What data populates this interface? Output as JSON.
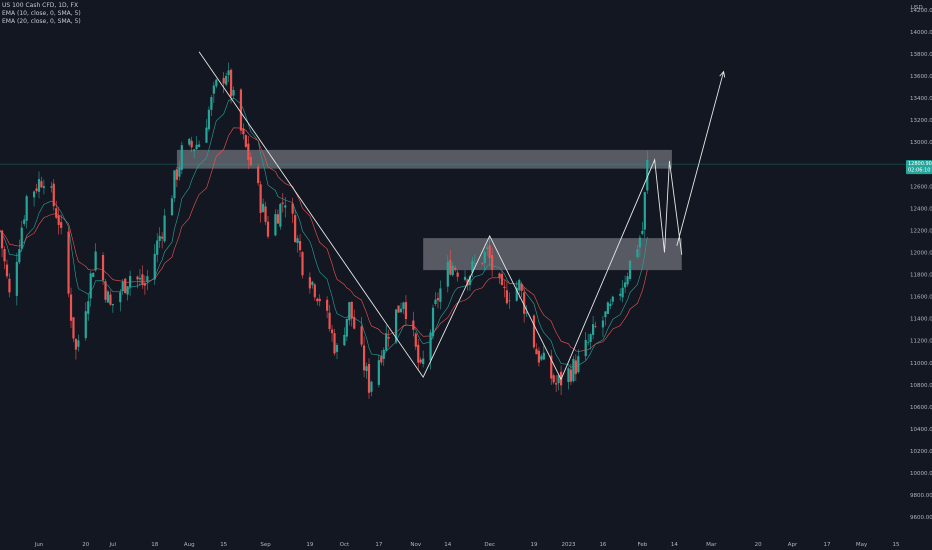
{
  "legend": {
    "symbol": "US 100 Cash CFD, 1D, FX",
    "ema1": "EMA (10, close, 0, SMA, 5)",
    "ema2": "EMA (20, close, 0, SMA, 5)"
  },
  "currency": "USD",
  "price_labels": {
    "last": "12800.90",
    "countdown": "02:06:10"
  },
  "colors": {
    "background": "#131722",
    "bull": "#26a69a",
    "bear": "#ef5350",
    "ema_fast": "#26a69a",
    "ema_slow": "#ef5350",
    "zone": "#6f7279",
    "drawing": "#e6e6e6",
    "axis_text": "#b2b5be",
    "price_line": "#26a69a"
  },
  "chart_data": {
    "type": "candlestick",
    "title": "",
    "y_axis_side": "right",
    "ylim": [
      9450,
      14800
    ],
    "y_ticks": [
      9600,
      9800,
      10000,
      10200,
      10400,
      10600,
      10800,
      11000,
      11200,
      11400,
      11600,
      11800,
      12000,
      12200,
      12400,
      12600,
      12800,
      13000,
      13200,
      13400,
      13600,
      13800,
      14000,
      14200
    ],
    "x_ticks": [
      {
        "label": "Jun",
        "date": "2022-06-01"
      },
      {
        "label": "20",
        "date": "2022-06-20"
      },
      {
        "label": "Jul",
        "date": "2022-07-01"
      },
      {
        "label": "18",
        "date": "2022-07-18"
      },
      {
        "label": "Aug",
        "date": "2022-08-01"
      },
      {
        "label": "15",
        "date": "2022-08-15"
      },
      {
        "label": "Sep",
        "date": "2022-09-01"
      },
      {
        "label": "19",
        "date": "2022-09-19"
      },
      {
        "label": "Oct",
        "date": "2022-10-03"
      },
      {
        "label": "17",
        "date": "2022-10-17"
      },
      {
        "label": "Nov",
        "date": "2022-11-01"
      },
      {
        "label": "14",
        "date": "2022-11-14"
      },
      {
        "label": "Dec",
        "date": "2022-12-01"
      },
      {
        "label": "19",
        "date": "2022-12-19"
      },
      {
        "label": "2023",
        "date": "2023-01-02"
      },
      {
        "label": "16",
        "date": "2023-01-16"
      },
      {
        "label": "Feb",
        "date": "2023-02-01"
      },
      {
        "label": "14",
        "date": "2023-02-14"
      },
      {
        "label": "Mar",
        "date": "2023-03-01"
      },
      {
        "label": "20",
        "date": "2023-03-20"
      },
      {
        "label": "Apr",
        "date": "2023-04-03"
      },
      {
        "label": "17",
        "date": "2023-04-17"
      },
      {
        "label": "May",
        "date": "2023-05-01"
      },
      {
        "label": "15",
        "date": "2023-05-15"
      }
    ],
    "anchors": [
      [
        "2022-05-16",
        12200
      ],
      [
        "2022-05-20",
        11600
      ],
      [
        "2022-05-27",
        12500
      ],
      [
        "2022-06-03",
        12700
      ],
      [
        "2022-06-09",
        12300
      ],
      [
        "2022-06-16",
        11100
      ],
      [
        "2022-06-24",
        12000
      ],
      [
        "2022-06-30",
        11500
      ],
      [
        "2022-07-08",
        11800
      ],
      [
        "2022-07-14",
        11700
      ],
      [
        "2022-07-22",
        12300
      ],
      [
        "2022-07-29",
        12900
      ],
      [
        "2022-08-05",
        13000
      ],
      [
        "2022-08-12",
        13500
      ],
      [
        "2022-08-16",
        13650
      ],
      [
        "2022-08-23",
        13000
      ],
      [
        "2022-08-26",
        12800
      ],
      [
        "2022-09-02",
        12200
      ],
      [
        "2022-09-09",
        12500
      ],
      [
        "2022-09-13",
        12200
      ],
      [
        "2022-09-16",
        11900
      ],
      [
        "2022-09-23",
        11600
      ],
      [
        "2022-09-30",
        11100
      ],
      [
        "2022-10-05",
        11500
      ],
      [
        "2022-10-13",
        10800
      ],
      [
        "2022-10-21",
        11300
      ],
      [
        "2022-10-27",
        11600
      ],
      [
        "2022-11-03",
        10900
      ],
      [
        "2022-11-10",
        11600
      ],
      [
        "2022-11-15",
        11900
      ],
      [
        "2022-11-22",
        11800
      ],
      [
        "2022-11-30",
        12000
      ],
      [
        "2022-12-06",
        11600
      ],
      [
        "2022-12-13",
        11700
      ],
      [
        "2022-12-20",
        11100
      ],
      [
        "2022-12-28",
        10800
      ],
      [
        "2023-01-06",
        11000
      ],
      [
        "2023-01-13",
        11300
      ],
      [
        "2023-01-20",
        11500
      ],
      [
        "2023-01-27",
        11900
      ],
      [
        "2023-02-01",
        12200
      ],
      [
        "2023-02-03",
        12800
      ]
    ],
    "ema_periods": [
      10,
      20
    ],
    "zones": [
      {
        "from": "2022-07-27",
        "to": "2023-02-13",
        "top": 12930,
        "bottom": 12760
      },
      {
        "from": "2022-11-04",
        "to": "2023-02-17",
        "top": 12130,
        "bottom": 11840
      }
    ],
    "drawings": [
      {
        "type": "polyline",
        "points": [
          [
            "2022-08-05",
            13820
          ],
          [
            "2022-11-04",
            10870
          ],
          [
            "2022-12-01",
            12150
          ],
          [
            "2022-12-30",
            10850
          ],
          [
            "2023-02-06",
            12840
          ],
          [
            "2023-02-10",
            12000
          ],
          [
            "2023-02-12",
            12830
          ],
          [
            "2023-02-17",
            11980
          ]
        ]
      },
      {
        "type": "arrow",
        "points": [
          [
            "2023-02-15",
            12060
          ],
          [
            "2023-03-06",
            13640
          ]
        ]
      }
    ]
  }
}
